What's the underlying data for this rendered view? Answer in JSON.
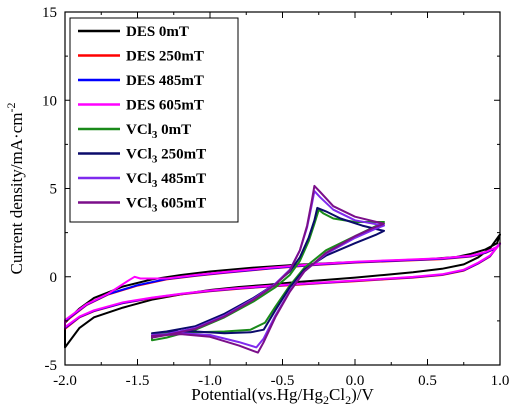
{
  "chart_data": {
    "type": "line",
    "xlabel_parts": [
      "Potential(vs.Hg/Hg",
      "2",
      "Cl",
      "2",
      ")/V"
    ],
    "ylabel_parts": [
      "Current density/mA·cm",
      "-2"
    ],
    "xlim": [
      -2.0,
      1.0
    ],
    "ylim": [
      -5,
      15
    ],
    "xticks": [
      -2.0,
      -1.5,
      -1.0,
      -0.5,
      0.0,
      0.5,
      1.0
    ],
    "xtick_labels": [
      "-2.0",
      "-1.5",
      "-1.0",
      "-0.5",
      "0.0",
      "0.5",
      "1.0"
    ],
    "yticks": [
      -5,
      0,
      5,
      10,
      15
    ],
    "ytick_labels": [
      "-5",
      "0",
      "5",
      "10",
      "15"
    ],
    "grid": false,
    "legend_position": "top-left",
    "series": [
      {
        "name": "DES 0mT",
        "name_main": "DES 0mT",
        "name_sub": "",
        "name_tail": "",
        "color": "#000000",
        "closed": true,
        "points": [
          [
            -2.0,
            -4.0
          ],
          [
            -1.9,
            -2.9
          ],
          [
            -1.8,
            -2.3
          ],
          [
            -1.6,
            -1.75
          ],
          [
            -1.4,
            -1.3
          ],
          [
            -1.2,
            -1.0
          ],
          [
            -1.0,
            -0.75
          ],
          [
            -0.8,
            -0.58
          ],
          [
            -0.6,
            -0.45
          ],
          [
            -0.4,
            -0.3
          ],
          [
            -0.2,
            -0.18
          ],
          [
            0.0,
            -0.05
          ],
          [
            0.2,
            0.1
          ],
          [
            0.4,
            0.25
          ],
          [
            0.6,
            0.45
          ],
          [
            0.75,
            0.7
          ],
          [
            0.85,
            1.1
          ],
          [
            0.93,
            1.6
          ],
          [
            1.0,
            2.4
          ],
          [
            0.98,
            1.9
          ],
          [
            0.9,
            1.55
          ],
          [
            0.8,
            1.3
          ],
          [
            0.7,
            1.12
          ],
          [
            0.5,
            1.0
          ],
          [
            0.2,
            0.9
          ],
          [
            -0.1,
            0.8
          ],
          [
            -0.4,
            0.68
          ],
          [
            -0.7,
            0.52
          ],
          [
            -1.0,
            0.3
          ],
          [
            -1.2,
            0.1
          ],
          [
            -1.4,
            -0.15
          ],
          [
            -1.6,
            -0.55
          ],
          [
            -1.8,
            -1.2
          ],
          [
            -1.9,
            -1.8
          ],
          [
            -2.0,
            -2.6
          ]
        ]
      },
      {
        "name": "DES 250mT",
        "name_main": "DES 250mT",
        "name_sub": "",
        "name_tail": "",
        "color": "#ff0000",
        "closed": true,
        "points": [
          [
            -2.0,
            -2.95
          ],
          [
            -1.9,
            -2.3
          ],
          [
            -1.8,
            -1.95
          ],
          [
            -1.6,
            -1.5
          ],
          [
            -1.4,
            -1.22
          ],
          [
            -1.2,
            -1.0
          ],
          [
            -1.0,
            -0.82
          ],
          [
            -0.8,
            -0.68
          ],
          [
            -0.6,
            -0.56
          ],
          [
            -0.4,
            -0.45
          ],
          [
            -0.2,
            -0.35
          ],
          [
            0.0,
            -0.25
          ],
          [
            0.2,
            -0.15
          ],
          [
            0.4,
            -0.05
          ],
          [
            0.6,
            0.1
          ],
          [
            0.75,
            0.35
          ],
          [
            0.85,
            0.75
          ],
          [
            0.93,
            1.15
          ],
          [
            1.0,
            1.9
          ],
          [
            0.97,
            1.6
          ],
          [
            0.9,
            1.35
          ],
          [
            0.8,
            1.15
          ],
          [
            0.6,
            1.0
          ],
          [
            0.3,
            0.9
          ],
          [
            0.0,
            0.8
          ],
          [
            -0.3,
            0.65
          ],
          [
            -0.6,
            0.45
          ],
          [
            -0.9,
            0.22
          ],
          [
            -1.1,
            0.05
          ],
          [
            -1.3,
            -0.15
          ],
          [
            -1.5,
            -0.5
          ],
          [
            -1.7,
            -1.0
          ],
          [
            -1.85,
            -1.6
          ],
          [
            -2.0,
            -2.55
          ]
        ]
      },
      {
        "name": "DES 485mT",
        "name_main": "DES 485mT",
        "name_sub": "",
        "name_tail": "",
        "color": "#0000ff",
        "closed": true,
        "points": [
          [
            -2.0,
            -2.9
          ],
          [
            -1.9,
            -2.28
          ],
          [
            -1.8,
            -1.93
          ],
          [
            -1.6,
            -1.48
          ],
          [
            -1.4,
            -1.2
          ],
          [
            -1.2,
            -0.98
          ],
          [
            -1.0,
            -0.8
          ],
          [
            -0.8,
            -0.66
          ],
          [
            -0.6,
            -0.54
          ],
          [
            -0.4,
            -0.43
          ],
          [
            -0.2,
            -0.33
          ],
          [
            0.0,
            -0.23
          ],
          [
            0.2,
            -0.13
          ],
          [
            0.4,
            -0.03
          ],
          [
            0.6,
            0.12
          ],
          [
            0.75,
            0.37
          ],
          [
            0.85,
            0.77
          ],
          [
            0.93,
            1.17
          ],
          [
            1.0,
            1.88
          ],
          [
            0.97,
            1.62
          ],
          [
            0.9,
            1.37
          ],
          [
            0.8,
            1.17
          ],
          [
            0.6,
            1.02
          ],
          [
            0.3,
            0.92
          ],
          [
            0.0,
            0.82
          ],
          [
            -0.3,
            0.67
          ],
          [
            -0.6,
            0.47
          ],
          [
            -0.9,
            0.24
          ],
          [
            -1.1,
            0.07
          ],
          [
            -1.3,
            -0.13
          ],
          [
            -1.5,
            -0.48
          ],
          [
            -1.7,
            -0.98
          ],
          [
            -1.85,
            -1.58
          ],
          [
            -2.0,
            -2.5
          ]
        ]
      },
      {
        "name": "DES 605mT",
        "name_main": "DES 605mT",
        "name_sub": "",
        "name_tail": "",
        "color": "#ff00ff",
        "closed": true,
        "points": [
          [
            -2.0,
            -2.85
          ],
          [
            -1.9,
            -2.25
          ],
          [
            -1.8,
            -1.9
          ],
          [
            -1.6,
            -1.45
          ],
          [
            -1.4,
            -1.18
          ],
          [
            -1.2,
            -0.96
          ],
          [
            -1.0,
            -0.78
          ],
          [
            -0.8,
            -0.64
          ],
          [
            -0.6,
            -0.52
          ],
          [
            -0.4,
            -0.41
          ],
          [
            -0.2,
            -0.31
          ],
          [
            0.0,
            -0.21
          ],
          [
            0.2,
            -0.11
          ],
          [
            0.4,
            -0.01
          ],
          [
            0.6,
            0.14
          ],
          [
            0.75,
            0.4
          ],
          [
            0.85,
            0.8
          ],
          [
            0.93,
            1.2
          ],
          [
            1.0,
            1.85
          ],
          [
            0.97,
            1.65
          ],
          [
            0.9,
            1.4
          ],
          [
            0.8,
            1.2
          ],
          [
            0.6,
            1.05
          ],
          [
            0.3,
            0.95
          ],
          [
            0.0,
            0.85
          ],
          [
            -0.3,
            0.7
          ],
          [
            -0.6,
            0.5
          ],
          [
            -0.9,
            0.27
          ],
          [
            -1.1,
            0.1
          ],
          [
            -1.3,
            -0.1
          ],
          [
            -1.48,
            -0.1
          ],
          [
            -1.52,
            0.0
          ],
          [
            -1.56,
            -0.2
          ],
          [
            -1.7,
            -0.95
          ],
          [
            -1.85,
            -1.55
          ],
          [
            -2.0,
            -2.45
          ]
        ]
      },
      {
        "name": "VCl3 0mT",
        "name_main": "VCl",
        "name_sub": "3",
        "name_tail": " 0mT",
        "color": "#1a8a1a",
        "closed": true,
        "points": [
          [
            -1.4,
            -3.6
          ],
          [
            -1.3,
            -3.45
          ],
          [
            -1.1,
            -3.0
          ],
          [
            -0.9,
            -2.3
          ],
          [
            -0.7,
            -1.4
          ],
          [
            -0.55,
            -0.6
          ],
          [
            -0.45,
            0.1
          ],
          [
            -0.38,
            0.9
          ],
          [
            -0.32,
            2.0
          ],
          [
            -0.28,
            3.0
          ],
          [
            -0.25,
            3.8
          ],
          [
            -0.22,
            3.6
          ],
          [
            -0.15,
            3.3
          ],
          [
            0.0,
            3.1
          ],
          [
            0.2,
            3.1
          ],
          [
            0.15,
            2.9
          ],
          [
            0.0,
            2.3
          ],
          [
            -0.2,
            1.5
          ],
          [
            -0.35,
            0.5
          ],
          [
            -0.45,
            -0.5
          ],
          [
            -0.55,
            -1.7
          ],
          [
            -0.62,
            -2.6
          ],
          [
            -0.72,
            -3.0
          ],
          [
            -0.9,
            -3.1
          ],
          [
            -1.1,
            -3.15
          ],
          [
            -1.3,
            -3.2
          ],
          [
            -1.4,
            -3.3
          ]
        ]
      },
      {
        "name": "VCl3 250mT",
        "name_main": "VCl",
        "name_sub": "3",
        "name_tail": " 250mT",
        "color": "#0b0b6b",
        "closed": true,
        "points": [
          [
            -1.4,
            -3.2
          ],
          [
            -1.3,
            -3.1
          ],
          [
            -1.1,
            -2.8
          ],
          [
            -0.9,
            -2.1
          ],
          [
            -0.7,
            -1.2
          ],
          [
            -0.55,
            -0.4
          ],
          [
            -0.45,
            0.3
          ],
          [
            -0.38,
            1.1
          ],
          [
            -0.32,
            2.2
          ],
          [
            -0.28,
            3.2
          ],
          [
            -0.26,
            3.9
          ],
          [
            -0.2,
            3.7
          ],
          [
            -0.1,
            3.3
          ],
          [
            0.05,
            2.9
          ],
          [
            0.2,
            2.6
          ],
          [
            0.15,
            2.4
          ],
          [
            0.0,
            1.9
          ],
          [
            -0.2,
            1.2
          ],
          [
            -0.35,
            0.4
          ],
          [
            -0.45,
            -0.6
          ],
          [
            -0.55,
            -1.9
          ],
          [
            -0.63,
            -3.0
          ],
          [
            -0.72,
            -3.15
          ],
          [
            -0.9,
            -3.2
          ],
          [
            -1.1,
            -3.1
          ],
          [
            -1.3,
            -3.1
          ],
          [
            -1.4,
            -3.2
          ]
        ]
      },
      {
        "name": "VCl3 485mT",
        "name_main": "VCl",
        "name_sub": "3",
        "name_tail": " 485mT",
        "color": "#7f2aee",
        "closed": true,
        "points": [
          [
            -1.4,
            -3.4
          ],
          [
            -1.3,
            -3.25
          ],
          [
            -1.1,
            -2.9
          ],
          [
            -0.9,
            -2.2
          ],
          [
            -0.7,
            -1.25
          ],
          [
            -0.55,
            -0.4
          ],
          [
            -0.45,
            0.4
          ],
          [
            -0.38,
            1.5
          ],
          [
            -0.33,
            2.8
          ],
          [
            -0.3,
            4.0
          ],
          [
            -0.28,
            4.85
          ],
          [
            -0.24,
            4.5
          ],
          [
            -0.15,
            3.8
          ],
          [
            0.0,
            3.2
          ],
          [
            0.2,
            2.9
          ],
          [
            0.15,
            2.75
          ],
          [
            0.0,
            2.2
          ],
          [
            -0.2,
            1.3
          ],
          [
            -0.35,
            0.3
          ],
          [
            -0.45,
            -0.8
          ],
          [
            -0.55,
            -2.2
          ],
          [
            -0.63,
            -3.5
          ],
          [
            -0.68,
            -4.0
          ],
          [
            -0.8,
            -3.7
          ],
          [
            -1.0,
            -3.3
          ],
          [
            -1.2,
            -3.2
          ],
          [
            -1.4,
            -3.3
          ]
        ]
      },
      {
        "name": "VCl3 605mT",
        "name_main": "VCl",
        "name_sub": "3",
        "name_tail": " 605mT",
        "color": "#7b0f8a",
        "closed": true,
        "points": [
          [
            -1.4,
            -3.45
          ],
          [
            -1.3,
            -3.3
          ],
          [
            -1.1,
            -2.95
          ],
          [
            -0.9,
            -2.25
          ],
          [
            -0.7,
            -1.3
          ],
          [
            -0.55,
            -0.45
          ],
          [
            -0.45,
            0.35
          ],
          [
            -0.38,
            1.5
          ],
          [
            -0.33,
            2.9
          ],
          [
            -0.3,
            4.2
          ],
          [
            -0.28,
            5.15
          ],
          [
            -0.24,
            4.8
          ],
          [
            -0.15,
            4.0
          ],
          [
            0.0,
            3.4
          ],
          [
            0.2,
            3.0
          ],
          [
            0.15,
            2.85
          ],
          [
            0.0,
            2.3
          ],
          [
            -0.2,
            1.35
          ],
          [
            -0.35,
            0.3
          ],
          [
            -0.45,
            -0.85
          ],
          [
            -0.55,
            -2.3
          ],
          [
            -0.63,
            -3.7
          ],
          [
            -0.67,
            -4.3
          ],
          [
            -0.8,
            -3.9
          ],
          [
            -1.0,
            -3.4
          ],
          [
            -1.2,
            -3.25
          ],
          [
            -1.4,
            -3.35
          ]
        ]
      }
    ]
  }
}
